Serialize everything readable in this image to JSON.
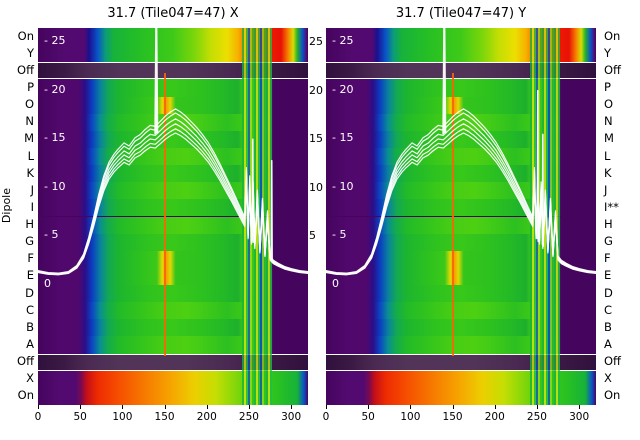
{
  "chart_data": {
    "type": "heatmap",
    "panels": [
      {
        "title": "31.7 (Tile047=47) X"
      },
      {
        "title": "31.7 (Tile047=47) Y"
      }
    ],
    "ylabel": "Dipole",
    "x_ticks": [
      0,
      50,
      100,
      150,
      200,
      250,
      300
    ],
    "x_range": [
      0,
      320
    ],
    "power_range": [
      -12.35,
      26.45
    ],
    "power_axis": {
      "ticks": [
        25,
        20,
        15,
        10,
        5,
        0
      ],
      "left_labels": [
        "- 25",
        "- 20",
        "- 15",
        "- 10",
        "- 5",
        "0"
      ],
      "right_labels": [
        "25",
        "20",
        "15",
        "10",
        "5"
      ]
    },
    "rows_left": [
      "On",
      "Y",
      "Off",
      "P",
      "O",
      "N",
      "M",
      "L",
      "K",
      "J",
      "I",
      "H",
      "G",
      "F",
      "E",
      "D",
      "C",
      "B",
      "A",
      "Off",
      "X",
      "On"
    ],
    "rows_right": [
      "On",
      "Y",
      "Off",
      "P",
      "O",
      "N",
      "M",
      "L",
      "K",
      "J",
      "I**",
      "H",
      "G",
      "F",
      "E",
      "D",
      "C",
      "B",
      "A",
      "Off",
      "X",
      "On"
    ],
    "row_types": [
      "on",
      "on",
      "off",
      "d2",
      "d3",
      "d1",
      "d2",
      "d1",
      "d2",
      "d1",
      "d2",
      "d1",
      "d2",
      "d3",
      "d3",
      "d2",
      "d1",
      "d2",
      "d1",
      "off",
      "bot",
      "bot"
    ],
    "gradients": {
      "on": [
        [
          0,
          "#45045e"
        ],
        [
          10,
          "#530a70"
        ],
        [
          17,
          "#530a70"
        ],
        [
          19,
          "#1a1090"
        ],
        [
          22,
          "#0a52c8"
        ],
        [
          25,
          "#0b9c7a"
        ],
        [
          28,
          "#17b23a"
        ],
        [
          38,
          "#26bf24"
        ],
        [
          50,
          "#3fca18"
        ],
        [
          58,
          "#7cd60a"
        ],
        [
          64,
          "#c4de03"
        ],
        [
          70,
          "#ecdf01"
        ],
        [
          74,
          "#f6b300"
        ],
        [
          77,
          "#f66d00"
        ],
        [
          81,
          "#ee2a02"
        ],
        [
          90,
          "#e81105"
        ],
        [
          92.5,
          "#f67c00"
        ],
        [
          94.5,
          "#d8dc03"
        ],
        [
          96,
          "#2bb42a"
        ],
        [
          98,
          "#0a52c8"
        ],
        [
          99.5,
          "#530a70"
        ],
        [
          100,
          "#45045e"
        ]
      ],
      "off": [
        [
          0,
          "#30103c"
        ],
        [
          10,
          "#3c1a46"
        ],
        [
          18,
          "#4a2a52"
        ],
        [
          30,
          "#523458"
        ],
        [
          55,
          "#523458"
        ],
        [
          70,
          "#4a2a52"
        ],
        [
          85,
          "#3c1a46"
        ],
        [
          100,
          "#30103c"
        ]
      ],
      "d1": [
        [
          0,
          "#45045e"
        ],
        [
          8,
          "#50086c"
        ],
        [
          15,
          "#50086c"
        ],
        [
          17.5,
          "#2a0e8a"
        ],
        [
          20,
          "#0b46c4"
        ],
        [
          23,
          "#0a8e92"
        ],
        [
          26,
          "#14ac4a"
        ],
        [
          30,
          "#22ba28"
        ],
        [
          38,
          "#33c51c"
        ],
        [
          46,
          "#46cc14"
        ],
        [
          55,
          "#4ed012"
        ],
        [
          62,
          "#3fca18"
        ],
        [
          70,
          "#2cc020"
        ],
        [
          76,
          "#3cc818"
        ],
        [
          79,
          "#96da07"
        ],
        [
          81,
          "#2abc22"
        ],
        [
          83,
          "#0b62b4"
        ],
        [
          85,
          "#34c41c"
        ],
        [
          87,
          "#45045e"
        ],
        [
          100,
          "#45045e"
        ]
      ],
      "d2": [
        [
          0,
          "#45045e"
        ],
        [
          8,
          "#50086c"
        ],
        [
          15,
          "#50086c"
        ],
        [
          17.5,
          "#2a0e8a"
        ],
        [
          20,
          "#0b3cc0"
        ],
        [
          23,
          "#0a80a0"
        ],
        [
          26,
          "#12a855"
        ],
        [
          30,
          "#1db52e"
        ],
        [
          40,
          "#2ec21f"
        ],
        [
          50,
          "#38c81a"
        ],
        [
          60,
          "#2ec21f"
        ],
        [
          68,
          "#24ba26"
        ],
        [
          74,
          "#1db02d"
        ],
        [
          76,
          "#35c41c"
        ],
        [
          79,
          "#8cd808"
        ],
        [
          81,
          "#2abc22"
        ],
        [
          83,
          "#0b62b4"
        ],
        [
          85,
          "#30c01e"
        ],
        [
          87,
          "#45045e"
        ],
        [
          100,
          "#45045e"
        ]
      ],
      "d3": [
        [
          0,
          "#45045e"
        ],
        [
          8,
          "#50086c"
        ],
        [
          15,
          "#50086c"
        ],
        [
          17.5,
          "#2a0e8a"
        ],
        [
          20,
          "#0b3cc0"
        ],
        [
          23,
          "#0a80a0"
        ],
        [
          26,
          "#12a855"
        ],
        [
          30,
          "#1db52e"
        ],
        [
          38,
          "#2ec21f"
        ],
        [
          44,
          "#3cc818"
        ],
        [
          46,
          "#e0d803"
        ],
        [
          47.5,
          "#f69e00"
        ],
        [
          49,
          "#e0d803"
        ],
        [
          51,
          "#34c41c"
        ],
        [
          60,
          "#2ec21f"
        ],
        [
          68,
          "#24ba26"
        ],
        [
          74,
          "#1db02d"
        ],
        [
          76,
          "#35c41c"
        ],
        [
          79,
          "#8cd808"
        ],
        [
          81,
          "#2abc22"
        ],
        [
          83,
          "#0b62b4"
        ],
        [
          85,
          "#30c01e"
        ],
        [
          87,
          "#45045e"
        ],
        [
          100,
          "#45045e"
        ]
      ],
      "bot": [
        [
          0,
          "#45045e"
        ],
        [
          8,
          "#530a70"
        ],
        [
          14,
          "#530a70"
        ],
        [
          16,
          "#7a0a50"
        ],
        [
          18,
          "#c40f18"
        ],
        [
          22,
          "#ee2a02"
        ],
        [
          30,
          "#f64f00"
        ],
        [
          40,
          "#f67c00"
        ],
        [
          50,
          "#f6a800"
        ],
        [
          58,
          "#eccf01"
        ],
        [
          66,
          "#c4de03"
        ],
        [
          74,
          "#7cd60a"
        ],
        [
          82,
          "#3fca18"
        ],
        [
          90,
          "#26bf24"
        ],
        [
          96,
          "#17b23a"
        ],
        [
          98.5,
          "#0a52c8"
        ],
        [
          100,
          "#45045e"
        ]
      ]
    },
    "curves": {
      "base": [
        [
          0,
          1.4
        ],
        [
          12,
          1.2
        ],
        [
          24,
          1.15
        ],
        [
          36,
          1.3
        ],
        [
          46,
          1.9
        ],
        [
          54,
          3.0
        ],
        [
          60,
          4.6
        ],
        [
          66,
          6.6
        ],
        [
          72,
          8.8
        ],
        [
          78,
          10.6
        ],
        [
          84,
          11.9
        ],
        [
          90,
          12.7
        ],
        [
          95,
          13.2
        ],
        [
          102,
          13.8
        ],
        [
          108,
          13.5
        ],
        [
          115,
          14.3
        ],
        [
          121,
          14.6
        ],
        [
          127,
          15.1
        ],
        [
          133,
          15.5
        ],
        [
          139,
          15.4
        ],
        [
          145,
          15.9
        ],
        [
          151,
          16.4
        ],
        [
          157,
          16.8
        ],
        [
          163,
          17.1
        ],
        [
          169,
          16.8
        ],
        [
          175,
          16.4
        ],
        [
          181,
          15.9
        ],
        [
          188,
          15.3
        ],
        [
          195,
          14.6
        ],
        [
          202,
          13.8
        ],
        [
          209,
          12.8
        ],
        [
          216,
          11.7
        ],
        [
          223,
          10.5
        ],
        [
          230,
          9.3
        ],
        [
          236,
          8.2
        ],
        [
          241,
          7.3
        ],
        [
          245,
          6.6
        ],
        [
          247,
          11.4
        ],
        [
          249,
          5.2
        ],
        [
          251,
          10.6
        ],
        [
          253,
          4.6
        ],
        [
          255,
          10.0
        ],
        [
          257,
          4.1
        ],
        [
          260,
          9.2
        ],
        [
          263,
          3.6
        ],
        [
          266,
          8.4
        ],
        [
          269,
          3.2
        ],
        [
          272,
          7.2
        ],
        [
          275,
          2.8
        ],
        [
          279,
          2.4
        ],
        [
          285,
          2.1
        ],
        [
          292,
          1.8
        ],
        [
          300,
          1.6
        ],
        [
          310,
          1.4
        ],
        [
          320,
          1.3
        ]
      ],
      "scales": [
        1.0,
        0.97,
        1.035,
        0.94,
        1.06,
        0.915
      ],
      "spike": [
        [
          139,
          15.6
        ],
        [
          140.2,
          28
        ],
        [
          141.4,
          15.7
        ]
      ],
      "extras": [
        [
          [
            [
              254,
              4.6
            ],
            [
              254.5,
              15.0
            ],
            [
              255,
              4.4
            ]
          ],
          [
            [
              276.5,
              2.7
            ],
            [
              277,
              12.8
            ],
            [
              277.5,
              2.5
            ]
          ]
        ],
        [
          [
            [
              250.5,
              4.8
            ],
            [
              251,
              20.0
            ],
            [
              251.5,
              4.5
            ]
          ],
          [
            [
              256.5,
              4.2
            ],
            [
              257,
              15.5
            ],
            [
              257.5,
              4.0
            ]
          ]
        ]
      ]
    },
    "palette": {
      "low": "#45045e",
      "mid": "#2ec21f",
      "high": "#ee2a02",
      "off_band": "#523458",
      "curve": "#ffffff"
    }
  }
}
